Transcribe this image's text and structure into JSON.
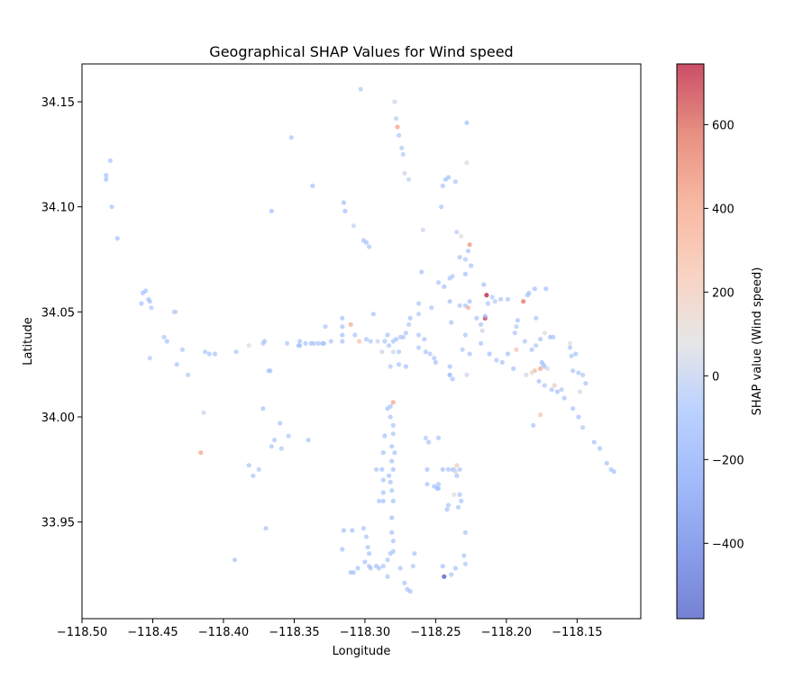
{
  "chart_data": {
    "type": "scatter",
    "title": "Geographical SHAP Values for Wind speed",
    "xlabel": "Longitude",
    "ylabel": "Latitude",
    "xlim": [
      -118.5,
      -118.105
    ],
    "ylim": [
      33.904,
      34.168
    ],
    "x_ticks": [
      -118.5,
      -118.45,
      -118.4,
      -118.35,
      -118.3,
      -118.25,
      -118.2,
      -118.15
    ],
    "x_tick_labels": [
      "−118.50",
      "−118.45",
      "−118.40",
      "−118.35",
      "−118.30",
      "−118.25",
      "−118.20",
      "−118.15"
    ],
    "y_ticks": [
      33.95,
      34.0,
      34.05,
      34.1,
      34.15
    ],
    "y_tick_labels": [
      "33.95",
      "34.00",
      "34.05",
      "34.10",
      "34.15"
    ],
    "colorbar": {
      "label": "SHAP value (Wind speed)",
      "colormap": "coolwarm",
      "alpha": 0.7,
      "range": [
        -580,
        745
      ],
      "ticks": [
        -400,
        -200,
        0,
        200,
        400,
        600
      ],
      "tick_labels": [
        "−400",
        "−200",
        "0",
        "200",
        "400",
        "600"
      ]
    },
    "grid": false,
    "legend": "none",
    "points": [
      [
        -118.303,
        34.156,
        -40
      ],
      [
        -118.279,
        34.15,
        20
      ],
      [
        -118.278,
        34.142,
        -30
      ],
      [
        -118.277,
        34.138,
        400
      ],
      [
        -118.276,
        34.134,
        -50
      ],
      [
        -118.274,
        34.128,
        -30
      ],
      [
        -118.273,
        34.125,
        -40
      ],
      [
        -118.272,
        34.116,
        20
      ],
      [
        -118.269,
        34.113,
        10
      ],
      [
        -118.228,
        34.14,
        -80
      ],
      [
        -118.228,
        34.121,
        120
      ],
      [
        -118.483,
        34.115,
        -80
      ],
      [
        -118.483,
        34.113,
        -80
      ],
      [
        -118.48,
        34.122,
        -60
      ],
      [
        -118.479,
        34.1,
        -60
      ],
      [
        -118.475,
        34.085,
        -80
      ],
      [
        -118.352,
        34.133,
        -60
      ],
      [
        -118.337,
        34.11,
        -70
      ],
      [
        -118.315,
        34.102,
        -80
      ],
      [
        -118.314,
        34.098,
        -80
      ],
      [
        -118.308,
        34.091,
        10
      ],
      [
        -118.301,
        34.084,
        -80
      ],
      [
        -118.299,
        34.083,
        -70
      ],
      [
        -118.297,
        34.081,
        -60
      ],
      [
        -118.366,
        34.098,
        -80
      ],
      [
        -118.245,
        34.11,
        -70
      ],
      [
        -118.243,
        34.113,
        -70
      ],
      [
        -118.241,
        34.114,
        -70
      ],
      [
        -118.236,
        34.112,
        -50
      ],
      [
        -118.246,
        34.1,
        -60
      ],
      [
        -118.259,
        34.089,
        30
      ],
      [
        -118.235,
        34.088,
        -20
      ],
      [
        -118.232,
        34.086,
        110
      ],
      [
        -118.226,
        34.082,
        450
      ],
      [
        -118.227,
        34.079,
        -70
      ],
      [
        -118.229,
        34.075,
        -50
      ],
      [
        -118.233,
        34.076,
        -60
      ],
      [
        -118.229,
        34.068,
        -80
      ],
      [
        -118.225,
        34.072,
        -60
      ],
      [
        -118.214,
        34.058,
        745
      ],
      [
        -118.216,
        34.063,
        -80
      ],
      [
        -118.215,
        34.047,
        700
      ],
      [
        -118.217,
        34.041,
        30
      ],
      [
        -118.218,
        34.044,
        -60
      ],
      [
        -118.215,
        34.048,
        -80
      ],
      [
        -118.213,
        34.054,
        -60
      ],
      [
        -118.21,
        34.057,
        -40
      ],
      [
        -118.208,
        34.055,
        -30
      ],
      [
        -118.204,
        34.056,
        -60
      ],
      [
        -118.199,
        34.056,
        -50
      ],
      [
        -118.192,
        34.046,
        -70
      ],
      [
        -118.188,
        34.055,
        550
      ],
      [
        -118.184,
        34.059,
        -60
      ],
      [
        -118.185,
        34.058,
        -80
      ],
      [
        -118.18,
        34.061,
        -80
      ],
      [
        -118.172,
        34.061,
        -80
      ],
      [
        -118.179,
        34.047,
        -60
      ],
      [
        -118.193,
        34.043,
        -40
      ],
      [
        -118.194,
        34.04,
        -60
      ],
      [
        -118.193,
        34.032,
        250
      ],
      [
        -118.187,
        34.036,
        -40
      ],
      [
        -118.182,
        34.032,
        -60
      ],
      [
        -118.179,
        34.034,
        -40
      ],
      [
        -118.176,
        34.037,
        -70
      ],
      [
        -118.173,
        34.04,
        80
      ],
      [
        -118.169,
        34.038,
        -80
      ],
      [
        -118.167,
        34.038,
        -60
      ],
      [
        -118.175,
        34.026,
        -70
      ],
      [
        -118.174,
        34.025,
        -70
      ],
      [
        -118.176,
        34.023,
        400
      ],
      [
        -118.173,
        34.024,
        -60
      ],
      [
        -118.171,
        34.023,
        50
      ],
      [
        -118.18,
        34.022,
        300
      ],
      [
        -118.186,
        34.02,
        40
      ],
      [
        -118.182,
        34.021,
        120
      ],
      [
        -118.177,
        34.017,
        -70
      ],
      [
        -118.173,
        34.015,
        -40
      ],
      [
        -118.168,
        34.013,
        -60
      ],
      [
        -118.166,
        34.015,
        200
      ],
      [
        -118.164,
        34.012,
        -80
      ],
      [
        -118.161,
        34.013,
        -30
      ],
      [
        -118.159,
        34.009,
        -70
      ],
      [
        -118.155,
        34.033,
        -50
      ],
      [
        -118.154,
        34.029,
        -50
      ],
      [
        -118.151,
        34.03,
        -70
      ],
      [
        -118.153,
        34.022,
        -60
      ],
      [
        -118.149,
        34.021,
        -50
      ],
      [
        -118.146,
        34.02,
        -40
      ],
      [
        -118.144,
        34.016,
        -60
      ],
      [
        -118.148,
        34.012,
        50
      ],
      [
        -118.155,
        34.035,
        100
      ],
      [
        -118.153,
        34.004,
        -70
      ],
      [
        -118.149,
        34.0,
        -80
      ],
      [
        -118.146,
        33.995,
        -40
      ],
      [
        -118.138,
        33.988,
        -60
      ],
      [
        -118.134,
        33.985,
        -80
      ],
      [
        -118.129,
        33.978,
        -60
      ],
      [
        -118.126,
        33.975,
        -60
      ],
      [
        -118.124,
        33.974,
        -80
      ],
      [
        -118.176,
        34.001,
        250
      ],
      [
        -118.181,
        33.996,
        -60
      ],
      [
        -118.195,
        34.023,
        -60
      ],
      [
        -118.199,
        34.03,
        -80
      ],
      [
        -118.203,
        34.026,
        -60
      ],
      [
        -118.207,
        34.027,
        -60
      ],
      [
        -118.212,
        34.03,
        -80
      ],
      [
        -118.218,
        34.035,
        -70
      ],
      [
        -118.226,
        34.03,
        -60
      ],
      [
        -118.228,
        34.02,
        30
      ],
      [
        -118.229,
        34.039,
        -60
      ],
      [
        -118.233,
        34.053,
        -60
      ],
      [
        -118.229,
        34.053,
        -60
      ],
      [
        -118.227,
        34.052,
        350
      ],
      [
        -118.226,
        34.055,
        -70
      ],
      [
        -118.221,
        34.047,
        -60
      ],
      [
        -118.231,
        34.032,
        -40
      ],
      [
        -118.239,
        34.045,
        -60
      ],
      [
        -118.24,
        34.055,
        -80
      ],
      [
        -118.244,
        34.062,
        -80
      ],
      [
        -118.24,
        34.066,
        -70
      ],
      [
        -118.238,
        34.067,
        -50
      ],
      [
        -118.26,
        34.069,
        -80
      ],
      [
        -118.248,
        34.064,
        -60
      ],
      [
        -118.253,
        34.052,
        -60
      ],
      [
        -118.262,
        34.054,
        -50
      ],
      [
        -118.262,
        34.049,
        -40
      ],
      [
        -118.268,
        34.047,
        -60
      ],
      [
        -118.269,
        34.044,
        -40
      ],
      [
        -118.271,
        34.04,
        -60
      ],
      [
        -118.273,
        34.038,
        -60
      ],
      [
        -118.275,
        34.038,
        -30
      ],
      [
        -118.278,
        34.037,
        -70
      ],
      [
        -118.28,
        34.036,
        -60
      ],
      [
        -118.283,
        34.034,
        -50
      ],
      [
        -118.286,
        34.036,
        -60
      ],
      [
        -118.291,
        34.036,
        20
      ],
      [
        -118.296,
        34.036,
        -40
      ],
      [
        -118.299,
        34.037,
        -60
      ],
      [
        -118.304,
        34.036,
        250
      ],
      [
        -118.307,
        34.039,
        -60
      ],
      [
        -118.31,
        34.044,
        350
      ],
      [
        -118.316,
        34.047,
        -80
      ],
      [
        -118.316,
        34.043,
        -70
      ],
      [
        -118.316,
        34.039,
        -80
      ],
      [
        -118.316,
        34.036,
        -60
      ],
      [
        -118.294,
        34.049,
        -70
      ],
      [
        -118.284,
        34.039,
        -70
      ],
      [
        -118.28,
        34.031,
        30
      ],
      [
        -118.276,
        34.031,
        -50
      ],
      [
        -118.282,
        34.024,
        -30
      ],
      [
        -118.276,
        34.025,
        -70
      ],
      [
        -118.271,
        34.024,
        -80
      ],
      [
        -118.262,
        34.033,
        -50
      ],
      [
        -118.257,
        34.031,
        -70
      ],
      [
        -118.254,
        34.03,
        -40
      ],
      [
        -118.251,
        34.028,
        -60
      ],
      [
        -118.25,
        34.026,
        -70
      ],
      [
        -118.24,
        34.024,
        -60
      ],
      [
        -118.24,
        34.02,
        -70
      ],
      [
        -118.238,
        34.018,
        -70
      ],
      [
        -118.258,
        34.037,
        -60
      ],
      [
        -118.262,
        34.039,
        -50
      ],
      [
        -118.288,
        34.031,
        30
      ],
      [
        -118.333,
        34.035,
        -60
      ],
      [
        -118.33,
        34.035,
        -80
      ],
      [
        -118.329,
        34.035,
        -70
      ],
      [
        -118.324,
        34.036,
        -50
      ],
      [
        -118.328,
        34.043,
        -50
      ],
      [
        -118.336,
        34.035,
        -50
      ],
      [
        -118.342,
        34.035,
        -70
      ],
      [
        -118.346,
        34.034,
        -70
      ],
      [
        -118.347,
        34.034,
        -70
      ],
      [
        -118.346,
        34.036,
        -60
      ],
      [
        -118.338,
        34.035,
        -70
      ],
      [
        -118.355,
        34.035,
        -50
      ],
      [
        -118.367,
        34.022,
        -70
      ],
      [
        -118.368,
        34.022,
        -60
      ],
      [
        -118.371,
        34.036,
        -60
      ],
      [
        -118.372,
        34.035,
        -40
      ],
      [
        -118.382,
        34.034,
        100
      ],
      [
        -118.391,
        34.031,
        -50
      ],
      [
        -118.406,
        34.03,
        -60
      ],
      [
        -118.41,
        34.03,
        -60
      ],
      [
        -118.413,
        34.031,
        -60
      ],
      [
        -118.429,
        34.032,
        -50
      ],
      [
        -118.433,
        34.025,
        -70
      ],
      [
        -118.434,
        34.05,
        -60
      ],
      [
        -118.435,
        34.05,
        20
      ],
      [
        -118.44,
        34.036,
        -70
      ],
      [
        -118.442,
        34.038,
        -60
      ],
      [
        -118.451,
        34.052,
        -40
      ],
      [
        -118.452,
        34.055,
        -70
      ],
      [
        -118.453,
        34.056,
        -60
      ],
      [
        -118.455,
        34.06,
        -80
      ],
      [
        -118.457,
        34.059,
        -80
      ],
      [
        -118.458,
        34.054,
        -60
      ],
      [
        -118.452,
        34.028,
        -30
      ],
      [
        -118.425,
        34.02,
        -40
      ],
      [
        -118.414,
        34.002,
        20
      ],
      [
        -118.416,
        33.983,
        400
      ],
      [
        -118.392,
        33.932,
        -60
      ],
      [
        -118.372,
        34.004,
        -60
      ],
      [
        -118.36,
        33.997,
        -60
      ],
      [
        -118.364,
        33.989,
        -60
      ],
      [
        -118.359,
        33.985,
        -50
      ],
      [
        -118.366,
        33.986,
        -60
      ],
      [
        -118.354,
        33.991,
        -40
      ],
      [
        -118.34,
        33.989,
        -60
      ],
      [
        -118.375,
        33.975,
        -40
      ],
      [
        -118.379,
        33.972,
        -60
      ],
      [
        -118.382,
        33.977,
        -60
      ],
      [
        -118.37,
        33.947,
        -60
      ],
      [
        -118.315,
        33.946,
        -70
      ],
      [
        -118.309,
        33.946,
        -70
      ],
      [
        -118.31,
        33.926,
        -80
      ],
      [
        -118.308,
        33.926,
        -60
      ],
      [
        -118.316,
        33.937,
        -70
      ],
      [
        -118.305,
        33.928,
        -70
      ],
      [
        -118.301,
        33.947,
        -60
      ],
      [
        -118.299,
        33.943,
        -50
      ],
      [
        -118.298,
        33.938,
        -60
      ],
      [
        -118.297,
        33.935,
        -70
      ],
      [
        -118.3,
        33.931,
        -70
      ],
      [
        -118.297,
        33.929,
        -80
      ],
      [
        -118.296,
        33.928,
        -60
      ],
      [
        -118.292,
        33.929,
        -70
      ],
      [
        -118.29,
        33.928,
        -60
      ],
      [
        -118.287,
        33.929,
        -50
      ],
      [
        -118.284,
        33.932,
        -60
      ],
      [
        -118.282,
        33.935,
        -60
      ],
      [
        -118.28,
        33.936,
        -70
      ],
      [
        -118.28,
        33.941,
        -60
      ],
      [
        -118.281,
        33.945,
        -70
      ],
      [
        -118.281,
        33.952,
        -80
      ],
      [
        -118.28,
        33.96,
        -70
      ],
      [
        -118.281,
        33.965,
        -60
      ],
      [
        -118.282,
        33.969,
        -70
      ],
      [
        -118.283,
        33.972,
        -80
      ],
      [
        -118.28,
        33.975,
        -70
      ],
      [
        -118.281,
        33.979,
        -60
      ],
      [
        -118.279,
        33.983,
        -70
      ],
      [
        -118.281,
        33.986,
        -60
      ],
      [
        -118.28,
        33.992,
        -60
      ],
      [
        -118.28,
        33.996,
        -60
      ],
      [
        -118.282,
        34.0,
        -60
      ],
      [
        -118.284,
        34.004,
        -70
      ],
      [
        -118.282,
        34.005,
        -60
      ],
      [
        -118.28,
        34.007,
        400
      ],
      [
        -118.286,
        33.991,
        -80
      ],
      [
        -118.287,
        33.983,
        -60
      ],
      [
        -118.288,
        33.975,
        -80
      ],
      [
        -118.287,
        33.97,
        -60
      ],
      [
        -118.287,
        33.964,
        -70
      ],
      [
        -118.287,
        33.96,
        -80
      ],
      [
        -118.29,
        33.96,
        -60
      ],
      [
        -118.292,
        33.975,
        -60
      ],
      [
        -118.275,
        33.928,
        -60
      ],
      [
        -118.272,
        33.921,
        -70
      ],
      [
        -118.27,
        33.918,
        -60
      ],
      [
        -118.268,
        33.917,
        -80
      ],
      [
        -118.266,
        33.929,
        -50
      ],
      [
        -118.265,
        33.935,
        -60
      ],
      [
        -118.284,
        33.924,
        -60
      ],
      [
        -118.256,
        33.968,
        -60
      ],
      [
        -118.251,
        33.967,
        -70
      ],
      [
        -118.249,
        33.966,
        -80
      ],
      [
        -118.248,
        33.968,
        -60
      ],
      [
        -118.245,
        33.975,
        -70
      ],
      [
        -118.241,
        33.975,
        -60
      ],
      [
        -118.238,
        33.975,
        -60
      ],
      [
        -118.235,
        33.977,
        200
      ],
      [
        -118.233,
        33.975,
        -70
      ],
      [
        -118.235,
        33.972,
        -60
      ],
      [
        -118.233,
        33.963,
        -60
      ],
      [
        -118.232,
        33.96,
        -70
      ],
      [
        -118.234,
        33.957,
        -60
      ],
      [
        -118.237,
        33.963,
        100
      ],
      [
        -118.241,
        33.958,
        -60
      ],
      [
        -118.242,
        33.956,
        -60
      ],
      [
        -118.229,
        33.945,
        -60
      ],
      [
        -118.23,
        33.934,
        -50
      ],
      [
        -118.229,
        33.93,
        -40
      ],
      [
        -118.236,
        33.928,
        -70
      ],
      [
        -118.239,
        33.925,
        -60
      ],
      [
        -118.244,
        33.924,
        -580
      ],
      [
        -118.245,
        33.929,
        -70
      ],
      [
        -118.256,
        33.975,
        -70
      ],
      [
        -118.257,
        33.99,
        -40
      ],
      [
        -118.255,
        33.988,
        -60
      ],
      [
        -118.248,
        33.99,
        -60
      ],
      [
        -118.248,
        33.966,
        -70
      ],
      [
        -118.237,
        33.975,
        10
      ],
      [
        -118.236,
        33.974,
        40
      ],
      [
        -118.24,
        34.02,
        -60
      ]
    ]
  }
}
